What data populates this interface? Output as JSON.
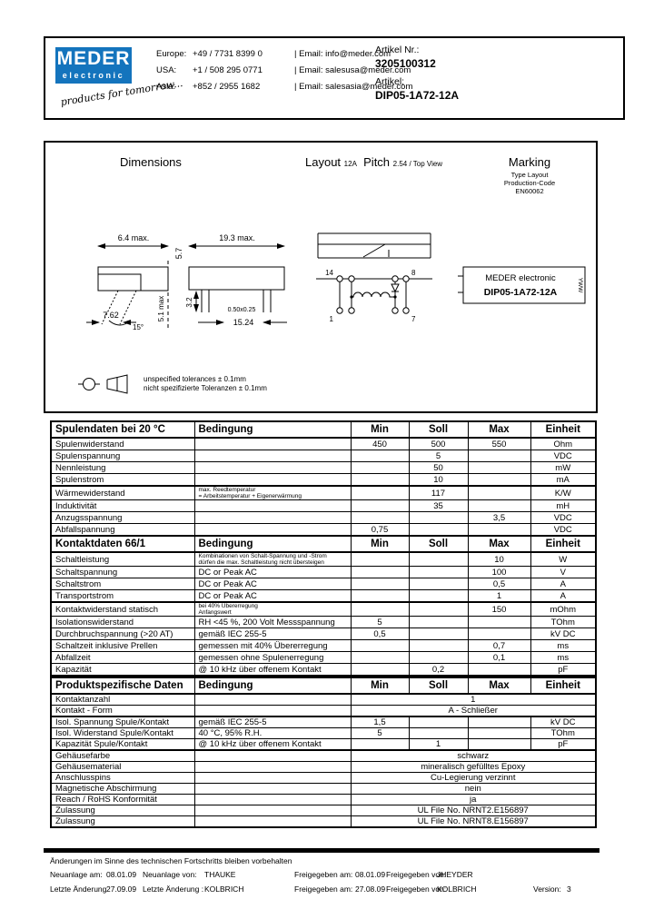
{
  "colors": {
    "brand_blue": "#1474bd"
  },
  "logo": {
    "name": "MEDER",
    "sub": "electronic",
    "tagline": "products for tomorrow..."
  },
  "contacts": [
    {
      "region": "Europe:",
      "phone": "+49 / 7731 8399 0",
      "email": "| Email: info@meder.com"
    },
    {
      "region": "USA:",
      "phone": "+1 / 508 295 0771",
      "email": "| Email: salesusa@meder.com"
    },
    {
      "region": "Asia:",
      "phone": "+852 / 2955 1682",
      "email": "| Email: salesasia@meder.com"
    }
  ],
  "page": {
    "artikel_nr_label": "Artikel Nr.:",
    "artikel_nr": "3205100312",
    "artikel_label": "Artikel:",
    "artikel": "DIP05-1A72-12A"
  },
  "drawing": {
    "dimensions_title": "Dimensions",
    "layout_label": "Layout",
    "layout_code": "12A",
    "pitch_label": "Pitch",
    "pitch_value": "2.54 / Top View",
    "marking_title": "Marking",
    "marking_info_1": "Type   Layout",
    "marking_info_2": "Production-Code",
    "marking_info_3": "EN60062",
    "marking_box_line1": "MEDER electronic",
    "marking_box_line2": "DIP05-1A72-12A",
    "marking_box_side": "YWW",
    "dims": {
      "side_width": "6.4 max.",
      "front_width": "19.3 max.",
      "body_height": "5.7",
      "total_height": "5.1 max",
      "lead_pitch_side": "7.62",
      "lead_angle": "15°",
      "lead_length": "3.2",
      "lead_size": "0.50x0.25",
      "lead_pitch_front": "15.24"
    },
    "pins": {
      "top_left": "14",
      "top_right": "8",
      "bottom_left": "1",
      "bottom_right": "7"
    },
    "tolerance_note_en": "unspecified tolerances ± 0.1mm",
    "tolerance_note_de": "nicht spezifizierte Toleranzen ± 0.1mm"
  },
  "tables": [
    {
      "title": "Spulendaten bei 20 °C",
      "headers": [
        "Bedingung",
        "Min",
        "Soll",
        "Max",
        "Einheit"
      ],
      "rows": [
        {
          "param": "Spulenwiderstand",
          "cond": "",
          "min": "450",
          "soll": "500",
          "max": "550",
          "unit": "Ohm"
        },
        {
          "param": "Spulenspannung",
          "cond": "",
          "min": "",
          "soll": "5",
          "max": "",
          "unit": "VDC"
        },
        {
          "param": "Nennleistung",
          "cond": "",
          "min": "",
          "soll": "50",
          "max": "",
          "unit": "mW"
        },
        {
          "param": "Spulenstrom",
          "cond": "",
          "min": "",
          "soll": "10",
          "max": "",
          "unit": "mA"
        },
        {
          "param": "Wärmewiderstand",
          "cond_small": [
            "max. Reedtemperatur",
            "=   Arbeitstemperatur + Eigenerwärmung"
          ],
          "min": "",
          "soll": "117",
          "max": "",
          "unit": "K/W",
          "thick_top": true
        },
        {
          "param": "Induktivität",
          "cond": "",
          "min": "",
          "soll": "35",
          "max": "",
          "unit": "mH"
        },
        {
          "param": "Anzugsspannung",
          "cond": "",
          "min": "",
          "soll": "",
          "max": "3,5",
          "unit": "VDC"
        },
        {
          "param": "Abfallspannung",
          "cond": "",
          "min": "0,75",
          "soll": "",
          "max": "",
          "unit": "VDC"
        }
      ]
    },
    {
      "title": "Kontaktdaten  66/1",
      "headers": [
        "Bedingung",
        "Min",
        "Soll",
        "Max",
        "Einheit"
      ],
      "rows": [
        {
          "param": "Schaltleistung",
          "cond_small": [
            "Kombinationen von Schalt-Spannung und -Strom",
            "dürfen die max. Schaltleistung nicht übersteigen"
          ],
          "min": "",
          "soll": "",
          "max": "10",
          "unit": "W"
        },
        {
          "param": "Schaltspannung",
          "cond": "DC or Peak AC",
          "min": "",
          "soll": "",
          "max": "100",
          "unit": "V"
        },
        {
          "param": "Schaltstrom",
          "cond": "DC or Peak AC",
          "min": "",
          "soll": "",
          "max": "0,5",
          "unit": "A"
        },
        {
          "param": "Transportstrom",
          "cond": "DC or Peak AC",
          "min": "",
          "soll": "",
          "max": "1",
          "unit": "A"
        },
        {
          "param": "Kontaktwiderstand statisch",
          "cond_small": [
            "bei 40% Übererregung",
            "Anfangswert"
          ],
          "min": "",
          "soll": "",
          "max": "150",
          "unit": "mOhm",
          "thick_top": true
        },
        {
          "param": "Isolationswiderstand",
          "cond": "RH <45 %, 200 Volt Messspannung",
          "min": "5",
          "soll": "",
          "max": "",
          "unit": "TOhm"
        },
        {
          "param": "Durchbruchspannung (>20 AT)",
          "cond": "gemäß  IEC 255-5",
          "min": "0,5",
          "soll": "",
          "max": "",
          "unit": "kV DC"
        },
        {
          "param": "Schaltzeit inklusive Prellen",
          "cond": "gemessen mit 40% Übererregung",
          "min": "",
          "soll": "",
          "max": "0,7",
          "unit": "ms"
        },
        {
          "param": "Abfallzeit",
          "cond": "gemessen ohne Spulenerregung",
          "min": "",
          "soll": "",
          "max": "0,1",
          "unit": "ms"
        },
        {
          "param": "Kapazität",
          "cond": "@ 10 kHz über offenem Kontakt",
          "min": "",
          "soll": "0,2",
          "max": "",
          "unit": "pF"
        }
      ]
    },
    {
      "title": "Produktspezifische Daten",
      "headers": [
        "Bedingung",
        "Min",
        "Soll",
        "Max",
        "Einheit"
      ],
      "rows": [
        {
          "param": "Kontaktanzahl",
          "cond": "",
          "merged": "1"
        },
        {
          "param": "Kontakt - Form",
          "cond": "",
          "merged": "A - Schließer"
        },
        {
          "param": "Isol. Spannung Spule/Kontakt",
          "cond": "gemäß  IEC 255-5",
          "min": "1,5",
          "soll": "",
          "max": "",
          "unit": "kV DC",
          "thick_top": true
        },
        {
          "param": "Isol. Widerstand Spule/Kontakt",
          "cond": "40 °C, 95% R.H.",
          "min": "5",
          "soll": "",
          "max": "",
          "unit": "TOhm"
        },
        {
          "param": "Kapazität Spule/Kontakt",
          "cond": "@ 10 kHz über offenem Kontakt",
          "min": "",
          "soll": "1",
          "max": "",
          "unit": "pF"
        },
        {
          "param": "Gehäusefarbe",
          "cond": "",
          "merged": "schwarz",
          "thick_top": true
        },
        {
          "param": "Gehäusematerial",
          "cond": "",
          "merged": "mineralisch gefülltes Epoxy"
        },
        {
          "param": "Anschlusspins",
          "cond": "",
          "merged": "Cu-Legierung verzinnt"
        },
        {
          "param": "Magnetische Abschirmung",
          "cond": "",
          "merged": "nein"
        },
        {
          "param": "Reach / RoHS Konformität",
          "cond": "",
          "merged": "ja"
        },
        {
          "param": "Zulassung",
          "cond": "",
          "merged": "UL File No. NRNT2.E156897"
        },
        {
          "param": "Zulassung",
          "cond": "",
          "merged": "UL File No. NRNT8.E156897"
        }
      ]
    }
  ],
  "footer": {
    "note": "Änderungen im Sinne des technischen Fortschritts bleiben vorbehalten",
    "rows": [
      [
        {
          "label": "Neuanlage am:",
          "value": "08.01.09"
        },
        {
          "label": "Neuanlage von:",
          "value": "THAUKE"
        },
        {
          "label": "Freigegeben am:",
          "value": "08.01.09"
        },
        {
          "label": "Freigegeben von:",
          "value": "JHEYDER"
        }
      ],
      [
        {
          "label": "Letzte Änderung",
          "value": "27.09.09"
        },
        {
          "label": "Letzte Änderung :",
          "value": "KOLBRICH"
        },
        {
          "label": "Freigegeben am:",
          "value": "27.08.09"
        },
        {
          "label": "Freigegeben von:",
          "value": "KOLBRICH"
        },
        {
          "label": "Version:",
          "value": "3"
        }
      ]
    ]
  }
}
